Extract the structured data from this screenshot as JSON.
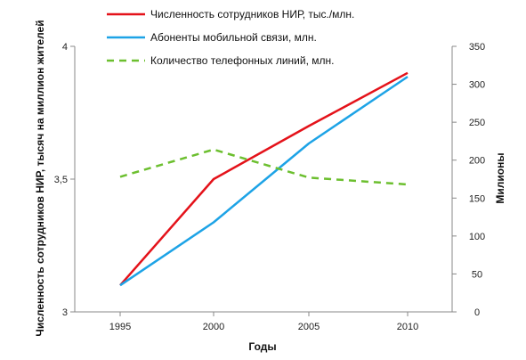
{
  "chart_data": {
    "type": "line",
    "x": [
      "1995",
      "2000",
      "2005",
      "2010"
    ],
    "xlabel": "Годы",
    "ylabel_left": "Численность сотрудников НИР, тысяч на миллион жителей",
    "ylabel_right": "Милионы",
    "ylim_left": [
      3,
      4
    ],
    "yticks_left": [
      "3",
      "3,5",
      "4"
    ],
    "ylim_right": [
      0,
      350
    ],
    "yticks_right": [
      "0",
      "50",
      "100",
      "150",
      "200",
      "250",
      "300",
      "350"
    ],
    "series": [
      {
        "name": "Численность сотрудников НИР, тыс./млн.",
        "axis": "left",
        "values": [
          3.1,
          3.5,
          3.7,
          3.9
        ],
        "color": "#e4121a",
        "style": "solid"
      },
      {
        "name": "Абоненты мобильной связи, млн.",
        "axis": "right",
        "values": [
          35,
          118,
          222,
          310
        ],
        "color": "#1da3e6",
        "style": "solid"
      },
      {
        "name": "Количество телефонных линий, млн.",
        "axis": "right",
        "values": [
          178,
          214,
          177,
          168
        ],
        "color": "#6cbf2f",
        "style": "dashed"
      }
    ],
    "legend_position": "top"
  }
}
